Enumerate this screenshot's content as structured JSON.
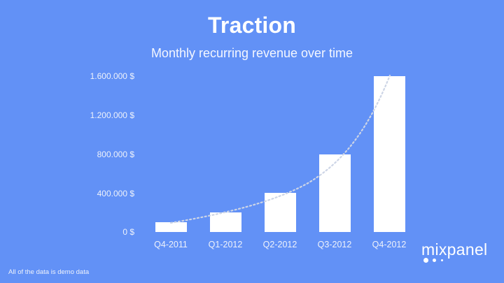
{
  "slide": {
    "title": "Traction",
    "subtitle": "Monthly recurring revenue over time",
    "footnote": "All of the data is demo data",
    "logo_text": "mixpanel",
    "background_color": "#6291f6"
  },
  "chart_data": {
    "type": "bar",
    "title": "Traction",
    "subtitle": "Monthly recurring revenue over time",
    "xlabel": "",
    "ylabel": "",
    "categories": [
      "Q4-2011",
      "Q1-2012",
      "Q2-2012",
      "Q3-2012",
      "Q4-2012"
    ],
    "values": [
      100000,
      200000,
      400000,
      800000,
      1600000
    ],
    "ylim": [
      0,
      1600000
    ],
    "yticks": [
      0,
      400000,
      800000,
      1200000,
      1600000
    ],
    "ytick_labels": [
      "0 $",
      "400.000 $",
      "800.000 $",
      "1.200.000 $",
      "1.600.000 $"
    ],
    "grid": false,
    "legend": null,
    "bar_color": "#ffffff",
    "annotations": [
      "dotted exponential trend line"
    ]
  }
}
